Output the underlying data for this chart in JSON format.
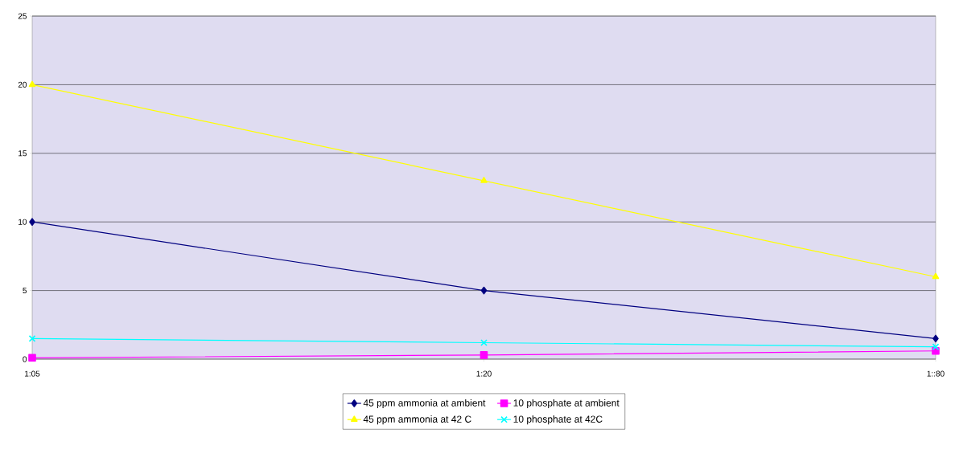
{
  "chart_data": {
    "type": "line",
    "categories": [
      "1:05",
      "1:20",
      "1::80"
    ],
    "series": [
      {
        "name": "45 ppm ammonia at ambient",
        "color": "#000080",
        "marker": "diamond",
        "values": [
          10,
          5,
          1.5
        ]
      },
      {
        "name": "10 phosphate at ambient",
        "color": "#ff00ff",
        "marker": "square",
        "values": [
          0.1,
          0.3,
          0.6
        ]
      },
      {
        "name": "45 ppm ammonia at 42 C",
        "color": "#ffff00",
        "marker": "triangle",
        "values": [
          20,
          13,
          6
        ]
      },
      {
        "name": "10 phosphate at 42C",
        "color": "#00ffff",
        "marker": "cross",
        "values": [
          1.5,
          1.2,
          0.9
        ]
      }
    ],
    "ylim": [
      0,
      25
    ],
    "yticks": [
      0,
      5,
      10,
      15,
      20,
      25
    ],
    "grid": "y",
    "legend": "bottom",
    "line_style": "solid"
  }
}
